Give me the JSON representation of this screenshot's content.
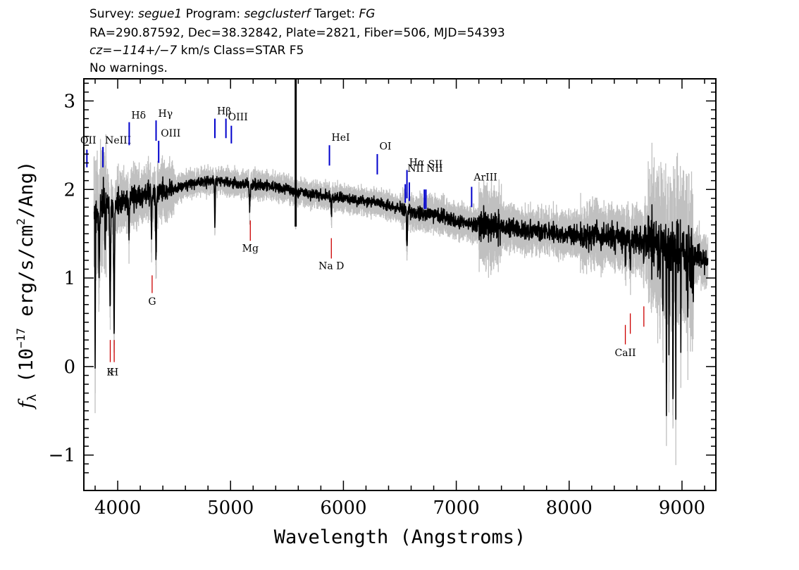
{
  "header": {
    "survey_label": "Survey: ",
    "survey": "segue1",
    "program_label": " Program: ",
    "program": "segclusterf",
    "target_label": " Target: ",
    "target": "FG",
    "line2": "RA=290.87592, Dec=38.32842, Plate=2821, Fiber=506, MJD=54393",
    "cz_label": "cz=",
    "cz": "−114+/−7",
    "cz_suffix": " km/s Class=STAR F5",
    "line4": "No warnings."
  },
  "chart_data": {
    "type": "line",
    "xlabel": "Wavelength (Angstroms)",
    "ylabel": "fλ (10⁻¹⁷ erg/s/cm²/Ang)",
    "ylabel_parts": {
      "sym": "f",
      "sub": "λ",
      "mid": " (10",
      "exp": "−17",
      "unit": " erg/s/cm",
      "exp2": "2",
      "end": "/Ang)"
    },
    "xlim": [
      3700,
      9300
    ],
    "ylim": [
      -1.4,
      3.25
    ],
    "xticks": [
      4000,
      5000,
      6000,
      7000,
      8000,
      9000
    ],
    "yticks": [
      -1,
      0,
      1,
      2,
      3
    ],
    "ytick_labels": [
      "−1",
      "0",
      "1",
      "2",
      "3"
    ],
    "grid": false,
    "colors": {
      "flux": "#000000",
      "error": "#c0c0c0",
      "emission": "#0000cc",
      "absorption": "#cc0000"
    },
    "continuum_anchors": [
      [
        3790,
        1.7
      ],
      [
        3900,
        1.8
      ],
      [
        4000,
        1.85
      ],
      [
        4150,
        1.9
      ],
      [
        4300,
        1.95
      ],
      [
        4500,
        2.0
      ],
      [
        4700,
        2.08
      ],
      [
        4900,
        2.1
      ],
      [
        5100,
        2.06
      ],
      [
        5300,
        2.05
      ],
      [
        5500,
        2.0
      ],
      [
        5700,
        1.95
      ],
      [
        6000,
        1.9
      ],
      [
        6300,
        1.85
      ],
      [
        6600,
        1.75
      ],
      [
        6800,
        1.72
      ],
      [
        7000,
        1.65
      ],
      [
        7200,
        1.6
      ],
      [
        7600,
        1.55
      ],
      [
        8000,
        1.5
      ],
      [
        8400,
        1.48
      ],
      [
        8800,
        1.4
      ],
      [
        9000,
        1.3
      ],
      [
        9230,
        1.2
      ]
    ],
    "absorption_features": [
      {
        "x": 3800,
        "y": -0.35,
        "w": 4
      },
      {
        "x": 3835,
        "y": 0.9,
        "w": 6
      },
      {
        "x": 3889,
        "y": 1.3,
        "w": 5
      },
      {
        "x": 3933,
        "y": 0.5,
        "w": 8
      },
      {
        "x": 3968,
        "y": 0.3,
        "w": 8
      },
      {
        "x": 4101,
        "y": 1.5,
        "w": 7
      },
      {
        "x": 4300,
        "y": 1.5,
        "w": 8
      },
      {
        "x": 4340,
        "y": 1.15,
        "w": 8
      },
      {
        "x": 4861,
        "y": 1.5,
        "w": 6
      },
      {
        "x": 5170,
        "y": 1.8,
        "w": 10
      },
      {
        "x": 5577,
        "y": 1.6,
        "w": 3
      },
      {
        "x": 5893,
        "y": 1.65,
        "w": 6
      },
      {
        "x": 6563,
        "y": 1.25,
        "w": 7
      },
      {
        "x": 8498,
        "y": 1.1,
        "w": 6
      },
      {
        "x": 8542,
        "y": 1.1,
        "w": 6
      },
      {
        "x": 8662,
        "y": 1.15,
        "w": 6
      },
      {
        "x": 8805,
        "y": 0.7,
        "w": 4
      },
      {
        "x": 8830,
        "y": 0.6,
        "w": 4
      },
      {
        "x": 8862,
        "y": -0.5,
        "w": 4
      },
      {
        "x": 8885,
        "y": -0.2,
        "w": 4
      },
      {
        "x": 8920,
        "y": -0.9,
        "w": 4
      },
      {
        "x": 8945,
        "y": -0.3,
        "w": 4
      },
      {
        "x": 8990,
        "y": 0.2,
        "w": 4
      },
      {
        "x": 9050,
        "y": 0.5,
        "w": 4
      },
      {
        "x": 9100,
        "y": 0.7,
        "w": 4
      }
    ],
    "sky_spike": {
      "x": 5577,
      "y": 3.25
    },
    "emission_lines": [
      {
        "label": "OII",
        "x": 3727,
        "y0": 2.25,
        "y1": 2.45,
        "ly": 2.52
      },
      {
        "label": "NeIII",
        "x": 3869,
        "y0": 2.25,
        "y1": 2.48,
        "ly": 2.52
      },
      {
        "label": "Hδ",
        "x": 4102,
        "y0": 2.5,
        "y1": 2.76,
        "ly": 2.8
      },
      {
        "label": "Hγ",
        "x": 4340,
        "y0": 2.55,
        "y1": 2.78,
        "ly": 2.82
      },
      {
        "label": "OIII",
        "x": 4363,
        "y0": 2.3,
        "y1": 2.55,
        "ly": 2.6
      },
      {
        "label": "Hβ",
        "x": 4861,
        "y0": 2.58,
        "y1": 2.8,
        "ly": 2.85
      },
      {
        "label": "OIII",
        "x": 4959,
        "y0": 2.58,
        "y1": 2.8,
        "ly": 2.78
      },
      {
        "label": "",
        "x": 5007,
        "y0": 2.52,
        "y1": 2.72,
        "ly": 2.78
      },
      {
        "label": "HeI",
        "x": 5876,
        "y0": 2.27,
        "y1": 2.5,
        "ly": 2.55
      },
      {
        "label": "OI",
        "x": 6300,
        "y0": 2.17,
        "y1": 2.4,
        "ly": 2.45
      },
      {
        "label": "NII",
        "x": 6548,
        "y0": 1.85,
        "y1": 2.06,
        "ly": 2.2
      },
      {
        "label": "Hα",
        "x": 6563,
        "y0": 1.9,
        "y1": 2.22,
        "ly": 2.27
      },
      {
        "label": "",
        "x": 6584,
        "y0": 1.87,
        "y1": 2.08,
        "ly": 2.2
      },
      {
        "label": "NII",
        "x": 6717,
        "y0": 1.78,
        "y1": 2.0,
        "ly": 2.2
      },
      {
        "label": "SII",
        "x": 6731,
        "y0": 1.78,
        "y1": 2.0,
        "ly": 2.25
      },
      {
        "label": "ArIII",
        "x": 7136,
        "y0": 1.8,
        "y1": 2.03,
        "ly": 2.1
      }
    ],
    "absorption_lines": [
      {
        "label": "K",
        "x": 3934,
        "y0": 0.3,
        "y1": 0.05,
        "ly": -0.1
      },
      {
        "label": "H",
        "x": 3969,
        "y0": 0.3,
        "y1": 0.05,
        "ly": -0.1
      },
      {
        "label": "G",
        "x": 4305,
        "y0": 1.03,
        "y1": 0.83,
        "ly": 0.7
      },
      {
        "label": "Mg",
        "x": 5175,
        "y0": 1.65,
        "y1": 1.42,
        "ly": 1.3
      },
      {
        "label": "Na D",
        "x": 5893,
        "y0": 1.45,
        "y1": 1.22,
        "ly": 1.1
      },
      {
        "label": "CaII",
        "x": 8498,
        "y0": 0.47,
        "y1": 0.25,
        "ly": 0.12
      },
      {
        "label": "",
        "x": 8542,
        "y0": 0.6,
        "y1": 0.37,
        "ly": 0.12
      },
      {
        "label": "",
        "x": 8662,
        "y0": 0.68,
        "y1": 0.45,
        "ly": 0.12
      }
    ]
  }
}
